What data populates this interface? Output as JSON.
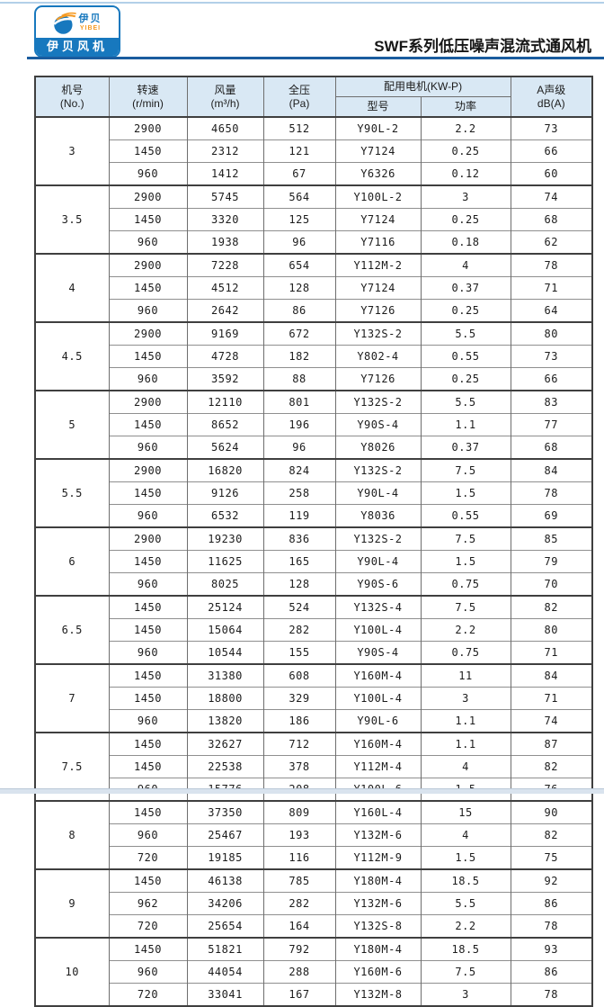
{
  "page": {
    "title": "SWF系列低压噪声混流式通风机"
  },
  "logo": {
    "name_cn": "伊贝",
    "name_en": "YIBEI",
    "banner": "伊贝风机"
  },
  "colors": {
    "brand_blue": "#1778be",
    "brand_orange": "#f59a23",
    "rule_blue": "#1a5c9e",
    "header_bg": "#d9e8f4",
    "strip_bg": "#d9e3ee"
  },
  "table": {
    "headers": {
      "no_l1": "机号",
      "no_l2": "(No.)",
      "speed_l1": "转速",
      "speed_l2": "(r/min)",
      "flow_l1": "风量",
      "flow_l2": "(m³/h)",
      "pressure_l1": "全压",
      "pressure_l2": "(Pa)",
      "motor": "配用电机(KW-P)",
      "model": "型号",
      "power": "功率",
      "noise_l1": "A声级",
      "noise_l2": "dB(A)"
    },
    "groups": [
      {
        "no": "3",
        "rows": [
          [
            "2900",
            "4650",
            "512",
            "Y90L-2",
            "2.2",
            "73"
          ],
          [
            "1450",
            "2312",
            "121",
            "Y7124",
            "0.25",
            "66"
          ],
          [
            "960",
            "1412",
            "67",
            "Y6326",
            "0.12",
            "60"
          ]
        ]
      },
      {
        "no": "3.5",
        "rows": [
          [
            "2900",
            "5745",
            "564",
            "Y100L-2",
            "3",
            "74"
          ],
          [
            "1450",
            "3320",
            "125",
            "Y7124",
            "0.25",
            "68"
          ],
          [
            "960",
            "1938",
            "96",
            "Y7116",
            "0.18",
            "62"
          ]
        ]
      },
      {
        "no": "4",
        "rows": [
          [
            "2900",
            "7228",
            "654",
            "Y112M-2",
            "4",
            "78"
          ],
          [
            "1450",
            "4512",
            "128",
            "Y7124",
            "0.37",
            "71"
          ],
          [
            "960",
            "2642",
            "86",
            "Y7126",
            "0.25",
            "64"
          ]
        ]
      },
      {
        "no": "4.5",
        "rows": [
          [
            "2900",
            "9169",
            "672",
            "Y132S-2",
            "5.5",
            "80"
          ],
          [
            "1450",
            "4728",
            "182",
            "Y802-4",
            "0.55",
            "73"
          ],
          [
            "960",
            "3592",
            "88",
            "Y7126",
            "0.25",
            "66"
          ]
        ]
      },
      {
        "no": "5",
        "rows": [
          [
            "2900",
            "12110",
            "801",
            "Y132S-2",
            "5.5",
            "83"
          ],
          [
            "1450",
            "8652",
            "196",
            "Y90S-4",
            "1.1",
            "77"
          ],
          [
            "960",
            "5624",
            "96",
            "Y8026",
            "0.37",
            "68"
          ]
        ]
      },
      {
        "no": "5.5",
        "rows": [
          [
            "2900",
            "16820",
            "824",
            "Y132S-2",
            "7.5",
            "84"
          ],
          [
            "1450",
            "9126",
            "258",
            "Y90L-4",
            "1.5",
            "78"
          ],
          [
            "960",
            "6532",
            "119",
            "Y8036",
            "0.55",
            "69"
          ]
        ]
      },
      {
        "no": "6",
        "rows": [
          [
            "2900",
            "19230",
            "836",
            "Y132S-2",
            "7.5",
            "85"
          ],
          [
            "1450",
            "11625",
            "165",
            "Y90L-4",
            "1.5",
            "79"
          ],
          [
            "960",
            "8025",
            "128",
            "Y90S-6",
            "0.75",
            "70"
          ]
        ]
      },
      {
        "no": "6.5",
        "rows": [
          [
            "1450",
            "25124",
            "524",
            "Y132S-4",
            "7.5",
            "82"
          ],
          [
            "1450",
            "15064",
            "282",
            "Y100L-4",
            "2.2",
            "80"
          ],
          [
            "960",
            "10544",
            "155",
            "Y90S-4",
            "0.75",
            "71"
          ]
        ]
      },
      {
        "no": "7",
        "rows": [
          [
            "1450",
            "31380",
            "608",
            "Y160M-4",
            "11",
            "84"
          ],
          [
            "1450",
            "18800",
            "329",
            "Y100L-4",
            "3",
            "71"
          ],
          [
            "960",
            "13820",
            "186",
            "Y90L-6",
            "1.1",
            "74"
          ]
        ]
      },
      {
        "no": "7.5",
        "rows": [
          [
            "1450",
            "32627",
            "712",
            "Y160M-4",
            "1.1",
            "87"
          ],
          [
            "1450",
            "22538",
            "378",
            "Y112M-4",
            "4",
            "82"
          ],
          [
            "960",
            "15776",
            "208",
            "Y100L-6",
            "1.5",
            "76"
          ]
        ]
      },
      {
        "no": "8",
        "rows": [
          [
            "1450",
            "37350",
            "809",
            "Y160L-4",
            "15",
            "90"
          ],
          [
            "960",
            "25467",
            "193",
            "Y132M-6",
            "4",
            "82"
          ],
          [
            "720",
            "19185",
            "116",
            "Y112M-9",
            "1.5",
            "75"
          ]
        ]
      },
      {
        "no": "9",
        "rows": [
          [
            "1450",
            "46138",
            "785",
            "Y180M-4",
            "18.5",
            "92"
          ],
          [
            "962",
            "34206",
            "282",
            "Y132M-6",
            "5.5",
            "86"
          ],
          [
            "720",
            "25654",
            "164",
            "Y132S-8",
            "2.2",
            "78"
          ]
        ]
      },
      {
        "no": "10",
        "rows": [
          [
            "1450",
            "51821",
            "792",
            "Y180M-4",
            "18.5",
            "93"
          ],
          [
            "960",
            "44054",
            "288",
            "Y160M-6",
            "7.5",
            "86"
          ],
          [
            "720",
            "33041",
            "167",
            "Y132M-8",
            "3",
            "78"
          ]
        ]
      }
    ]
  }
}
